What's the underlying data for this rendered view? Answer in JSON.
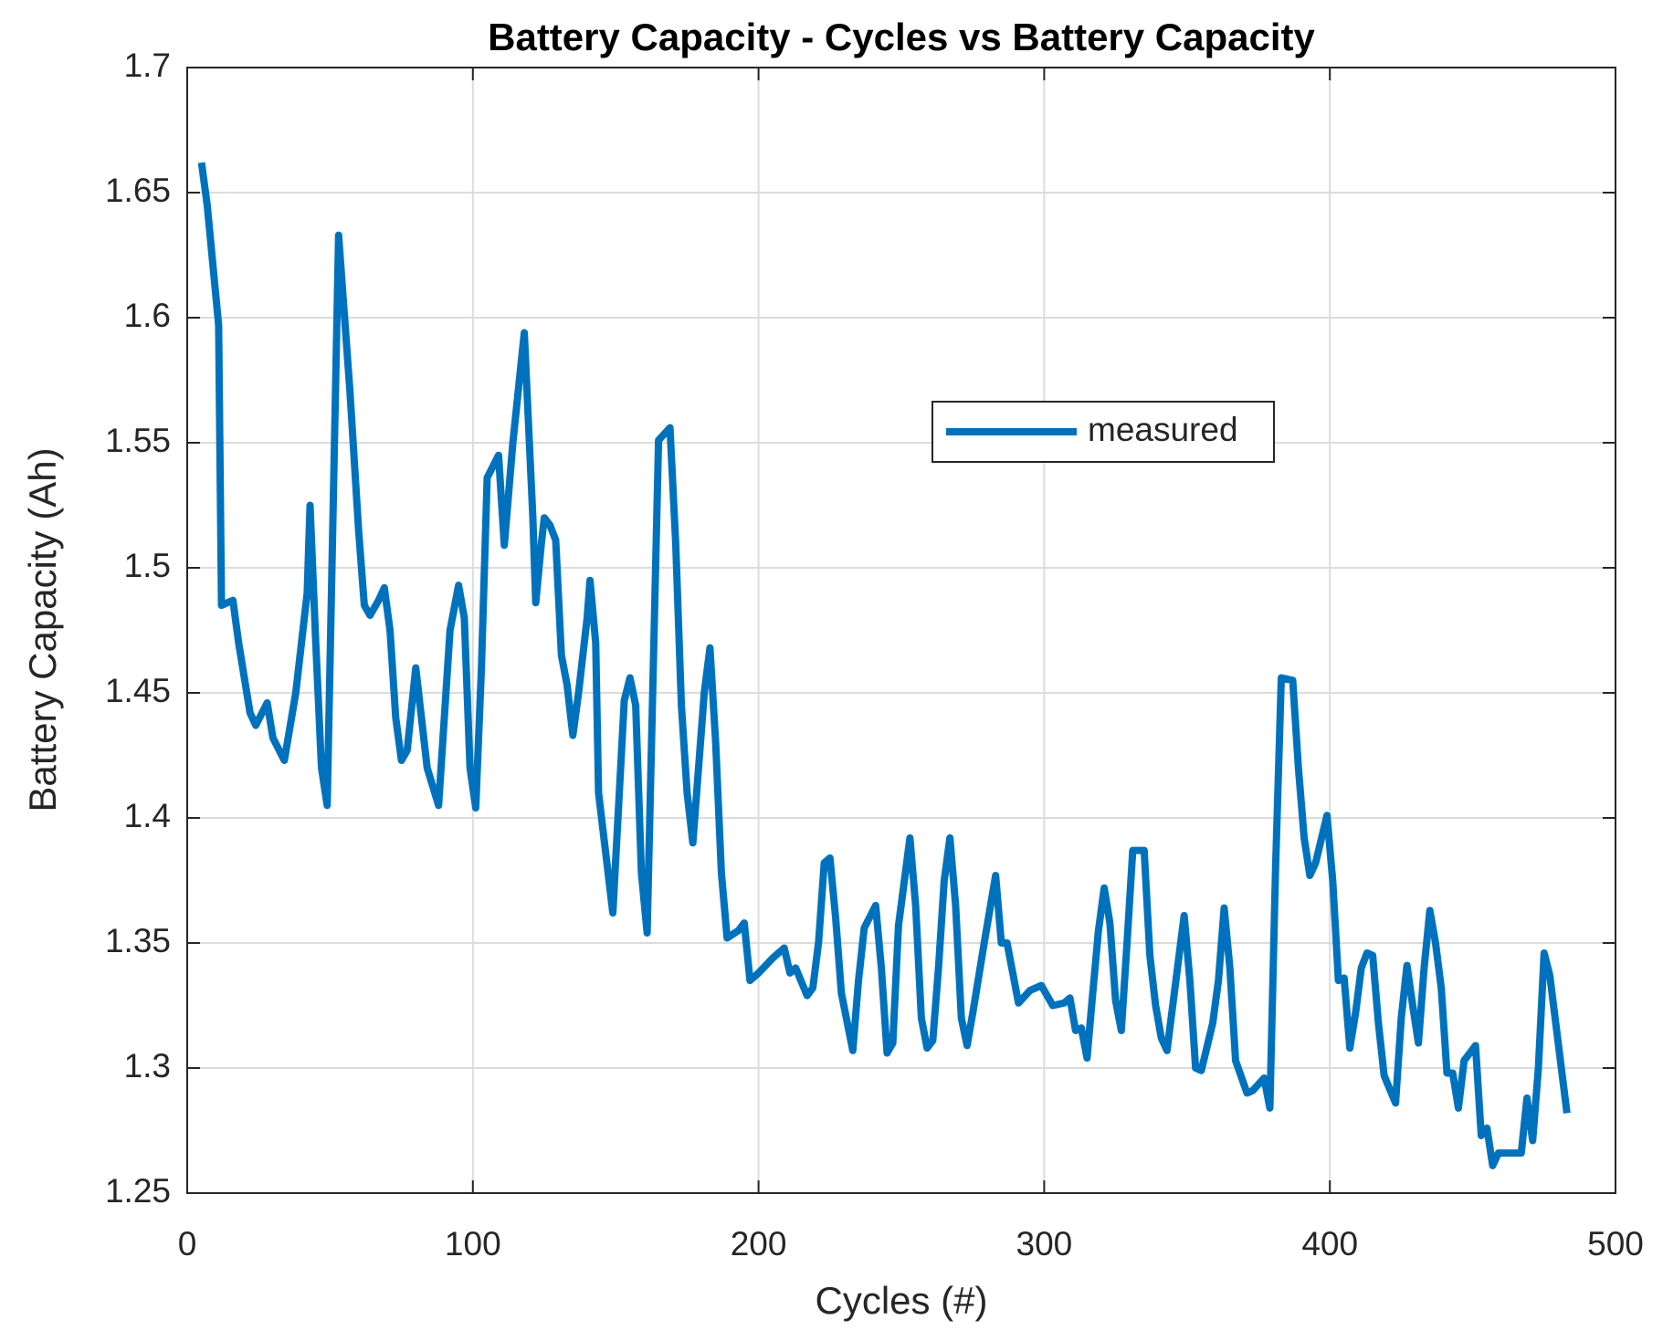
{
  "chart_data": {
    "type": "line",
    "title": "Battery Capacity - Cycles vs Battery Capacity",
    "xlabel": "Cycles (#)",
    "ylabel": "Battery Capacity (Ah)",
    "xlim": [
      0,
      500
    ],
    "xticks": [
      0,
      100,
      200,
      300,
      400,
      500
    ],
    "ylim": [
      1.25,
      1.7
    ],
    "yticks": [
      1.25,
      1.3,
      1.35,
      1.4,
      1.45,
      1.5,
      1.55,
      1.6,
      1.65,
      1.7
    ],
    "grid": true,
    "legend": "upper center",
    "x": [
      5,
      7,
      11,
      12,
      16,
      18,
      22,
      24,
      28,
      30,
      34,
      38,
      42,
      43,
      45,
      47,
      49,
      53,
      57,
      60,
      62,
      64,
      67,
      69,
      71,
      73,
      75,
      77,
      80,
      82,
      84,
      88,
      92,
      95,
      97,
      99,
      101,
      103,
      105,
      109,
      111,
      114,
      118,
      121,
      122,
      124,
      125,
      127,
      129,
      131,
      133,
      135,
      137,
      140,
      141,
      143,
      144,
      149,
      153,
      155,
      157,
      159,
      161,
      165,
      169,
      171,
      173,
      175,
      177,
      181,
      183,
      185,
      187,
      189,
      193,
      195,
      197,
      200,
      205,
      209,
      211,
      213,
      217,
      219,
      221,
      223,
      225,
      227,
      229,
      233,
      235,
      237,
      241,
      243,
      245,
      247,
      249,
      253,
      255,
      257,
      259,
      261,
      263,
      265,
      267,
      269,
      271,
      273,
      275,
      279,
      283,
      285,
      287,
      291,
      295,
      299,
      303,
      307,
      309,
      311,
      313,
      315,
      317,
      319,
      321,
      323,
      325,
      327,
      329,
      331,
      335,
      337,
      339,
      341,
      343,
      345,
      349,
      351,
      353,
      355,
      359,
      361,
      363,
      365,
      367,
      371,
      373,
      377,
      379,
      381,
      383,
      387,
      389,
      391,
      393,
      395,
      399,
      401,
      403,
      405,
      407,
      409,
      411,
      413,
      415,
      417,
      419,
      423,
      425,
      427,
      429,
      431,
      433,
      435,
      437,
      439,
      441,
      443,
      445,
      447,
      451,
      453,
      455,
      457,
      459,
      463,
      467,
      469,
      471,
      473,
      475,
      477,
      483
    ],
    "series": [
      {
        "name": "measured",
        "color": "#0072bd",
        "values": [
          1.662,
          1.645,
          1.597,
          1.485,
          1.487,
          1.47,
          1.442,
          1.437,
          1.446,
          1.432,
          1.423,
          1.45,
          1.49,
          1.525,
          1.47,
          1.42,
          1.405,
          1.633,
          1.57,
          1.515,
          1.485,
          1.481,
          1.487,
          1.492,
          1.475,
          1.44,
          1.423,
          1.427,
          1.46,
          1.44,
          1.42,
          1.405,
          1.475,
          1.493,
          1.48,
          1.42,
          1.404,
          1.46,
          1.536,
          1.545,
          1.509,
          1.55,
          1.594,
          1.52,
          1.486,
          1.51,
          1.52,
          1.517,
          1.511,
          1.465,
          1.453,
          1.433,
          1.45,
          1.48,
          1.495,
          1.47,
          1.41,
          1.362,
          1.447,
          1.456,
          1.445,
          1.378,
          1.354,
          1.551,
          1.556,
          1.51,
          1.445,
          1.41,
          1.39,
          1.45,
          1.468,
          1.43,
          1.378,
          1.352,
          1.355,
          1.358,
          1.335,
          1.338,
          1.344,
          1.348,
          1.338,
          1.34,
          1.329,
          1.332,
          1.35,
          1.382,
          1.384,
          1.36,
          1.33,
          1.307,
          1.335,
          1.356,
          1.365,
          1.34,
          1.306,
          1.31,
          1.357,
          1.392,
          1.365,
          1.32,
          1.308,
          1.311,
          1.34,
          1.375,
          1.392,
          1.365,
          1.32,
          1.309,
          1.322,
          1.35,
          1.377,
          1.35,
          1.35,
          1.326,
          1.331,
          1.333,
          1.325,
          1.326,
          1.328,
          1.315,
          1.316,
          1.304,
          1.33,
          1.355,
          1.372,
          1.358,
          1.327,
          1.315,
          1.35,
          1.387,
          1.387,
          1.345,
          1.325,
          1.312,
          1.307,
          1.325,
          1.361,
          1.335,
          1.3,
          1.299,
          1.318,
          1.335,
          1.364,
          1.34,
          1.303,
          1.29,
          1.291,
          1.296,
          1.284,
          1.38,
          1.456,
          1.455,
          1.42,
          1.392,
          1.377,
          1.382,
          1.401,
          1.375,
          1.335,
          1.336,
          1.308,
          1.322,
          1.34,
          1.346,
          1.345,
          1.318,
          1.297,
          1.286,
          1.32,
          1.341,
          1.325,
          1.31,
          1.34,
          1.363,
          1.35,
          1.332,
          1.298,
          1.298,
          1.284,
          1.303,
          1.309,
          1.273,
          1.276,
          1.261,
          1.266,
          1.266,
          1.266,
          1.288,
          1.271,
          1.3,
          1.346,
          1.337,
          1.282
        ]
      }
    ]
  }
}
